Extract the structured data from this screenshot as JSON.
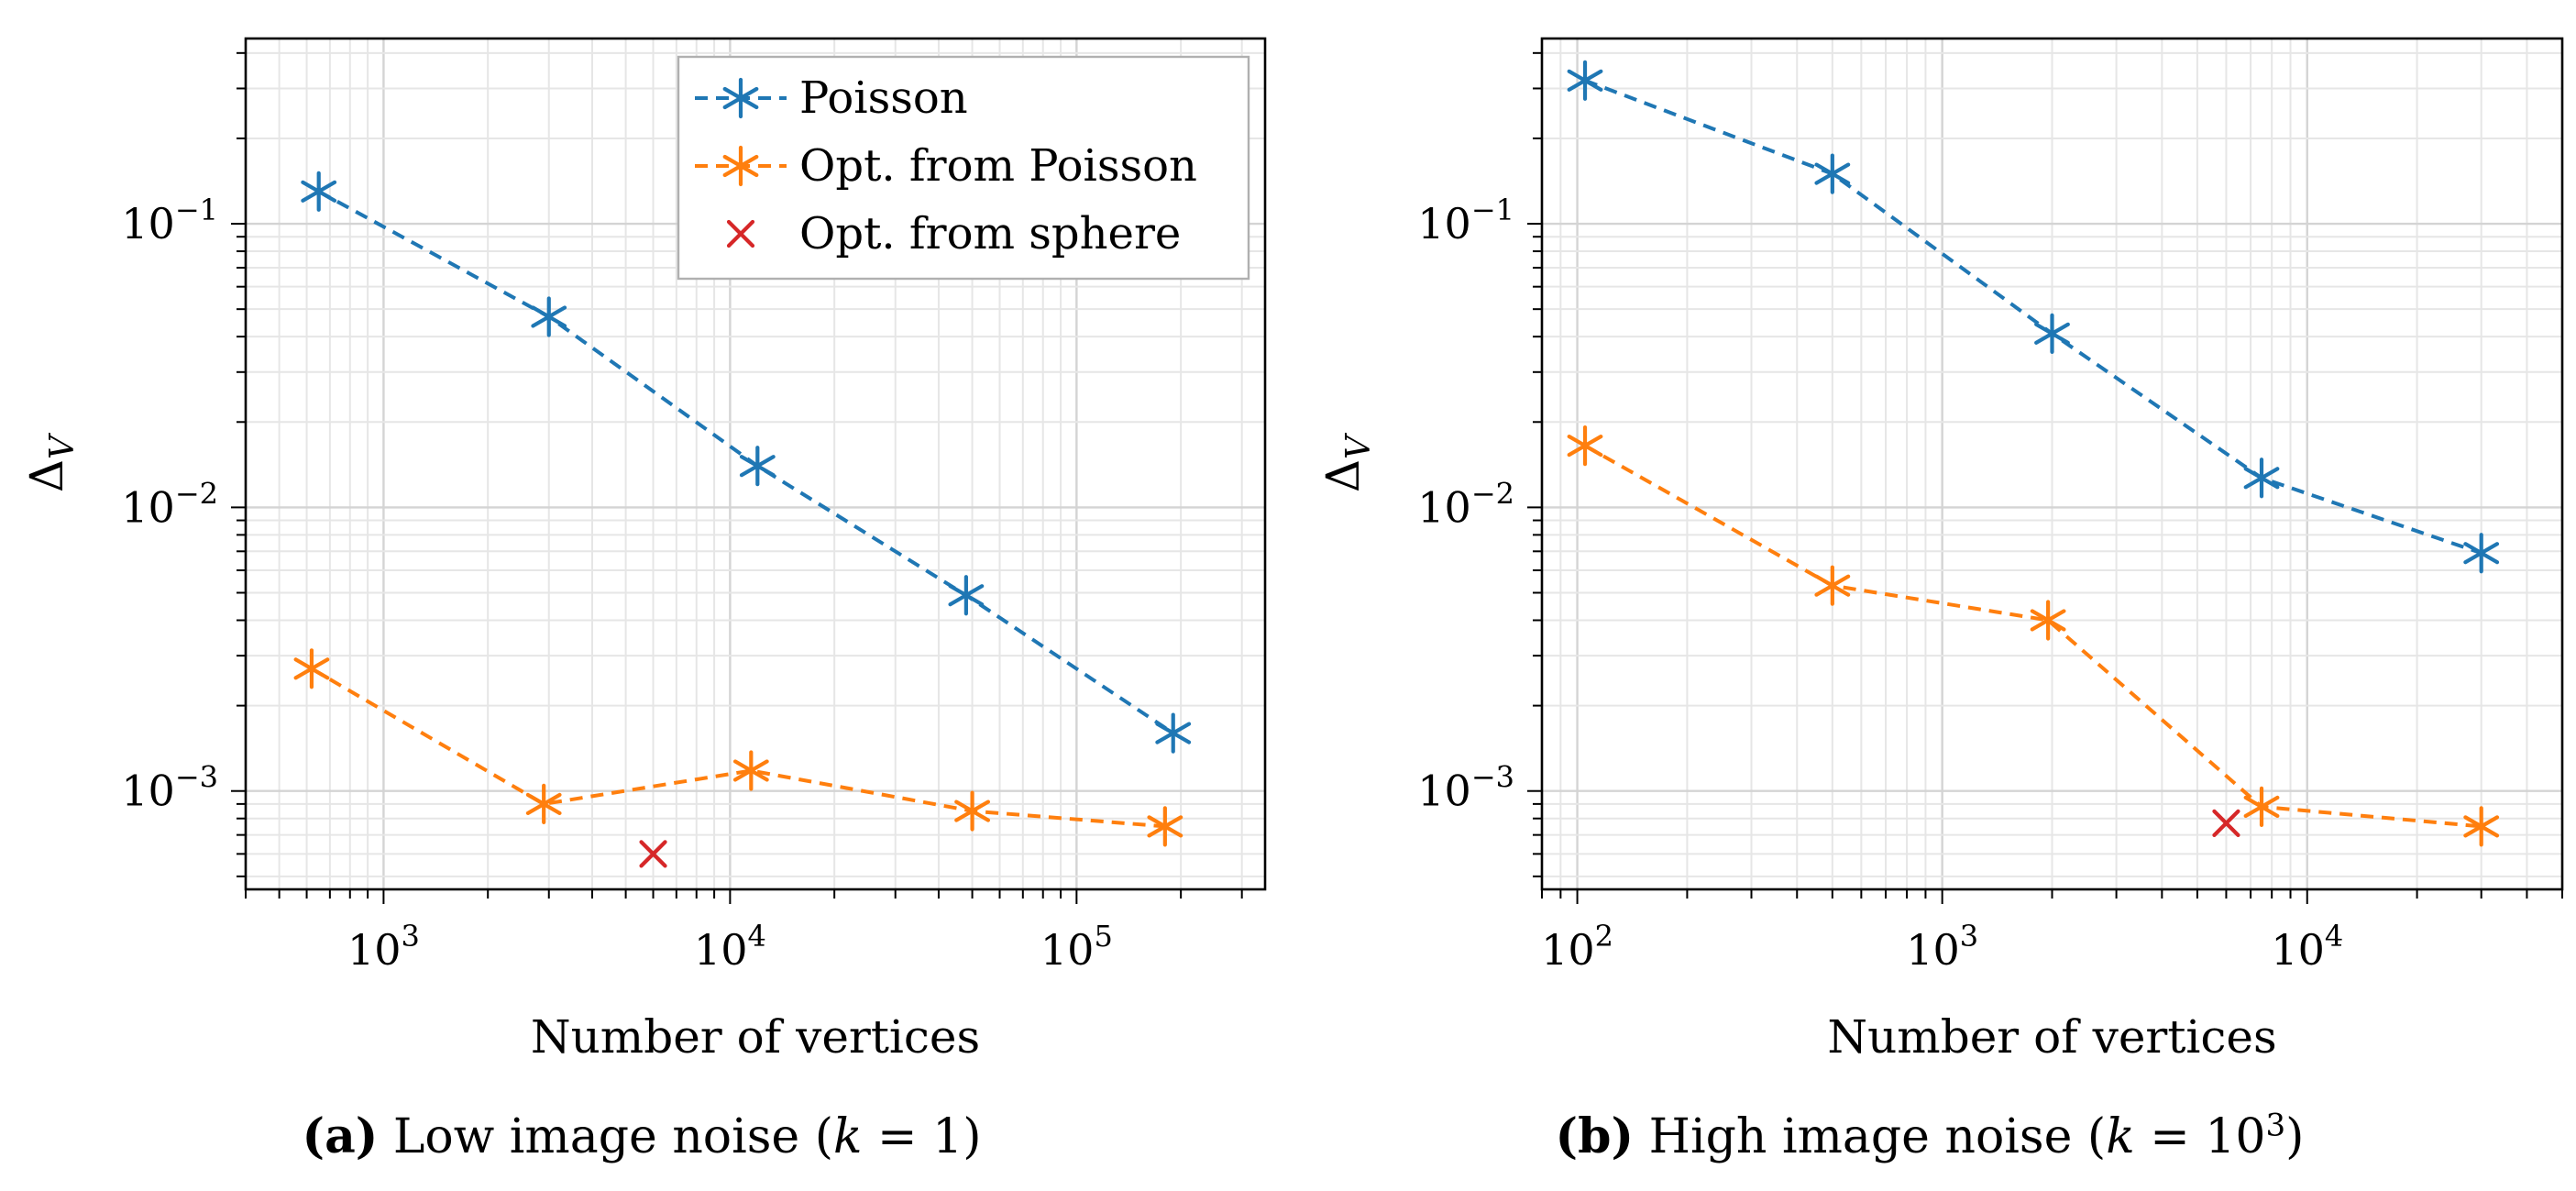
{
  "chart_data": [
    {
      "type": "line",
      "panel": "a",
      "xscale": "log",
      "yscale": "log",
      "xlim": [
        400,
        350000
      ],
      "ylim": [
        0.00045,
        0.45
      ],
      "xlabel": "Number of vertices",
      "ylabel": "Δ",
      "ylabel_sub": "V",
      "x_ticks": [
        {
          "base": "10",
          "exp": "3",
          "value": 1000
        },
        {
          "base": "10",
          "exp": "4",
          "value": 10000
        },
        {
          "base": "10",
          "exp": "5",
          "value": 100000
        }
      ],
      "y_ticks": [
        {
          "base": "10",
          "exp": "−3",
          "value": 0.001
        },
        {
          "base": "10",
          "exp": "−2",
          "value": 0.01
        },
        {
          "base": "10",
          "exp": "−1",
          "value": 0.1
        }
      ],
      "grid": true,
      "legend": "top-right",
      "series": [
        {
          "name": "Poisson",
          "color": "#1f77b4",
          "marker": "asterisk",
          "linestyle": "dashed",
          "x": [
            650,
            3000,
            12000,
            48000,
            190000
          ],
          "y": [
            0.13,
            0.047,
            0.014,
            0.0049,
            0.0016
          ]
        },
        {
          "name": "Opt. from Poisson",
          "color": "#ff7f0e",
          "marker": "asterisk",
          "linestyle": "dashed",
          "x": [
            620,
            2900,
            11500,
            50000,
            180000
          ],
          "y": [
            0.0027,
            0.0009,
            0.00118,
            0.00085,
            0.00075
          ]
        },
        {
          "name": "Opt. from sphere",
          "color": "#d62728",
          "marker": "x",
          "linestyle": "none",
          "x": [
            6000
          ],
          "y": [
            0.0006
          ]
        }
      ],
      "caption": {
        "letter": "(a)",
        "before": " Low image noise (",
        "math": "k",
        "after_eq": " = 1)"
      }
    },
    {
      "type": "line",
      "panel": "b",
      "xscale": "log",
      "yscale": "log",
      "xlim": [
        80,
        50000
      ],
      "ylim": [
        0.00045,
        0.45
      ],
      "xlabel": "Number of vertices",
      "ylabel": "Δ",
      "ylabel_sub": "V",
      "x_ticks": [
        {
          "base": "10",
          "exp": "2",
          "value": 100
        },
        {
          "base": "10",
          "exp": "3",
          "value": 1000
        },
        {
          "base": "10",
          "exp": "4",
          "value": 10000
        }
      ],
      "y_ticks": [
        {
          "base": "10",
          "exp": "−3",
          "value": 0.001
        },
        {
          "base": "10",
          "exp": "−2",
          "value": 0.01
        },
        {
          "base": "10",
          "exp": "−1",
          "value": 0.1
        }
      ],
      "grid": true,
      "series": [
        {
          "name": "Poisson",
          "color": "#1f77b4",
          "marker": "asterisk",
          "linestyle": "dashed",
          "x": [
            105,
            500,
            2000,
            7500,
            30000
          ],
          "y": [
            0.32,
            0.15,
            0.041,
            0.0127,
            0.0069
          ]
        },
        {
          "name": "Opt. from Poisson",
          "color": "#ff7f0e",
          "marker": "asterisk",
          "linestyle": "dashed",
          "x": [
            105,
            500,
            1950,
            7500,
            30000
          ],
          "y": [
            0.0165,
            0.0053,
            0.004,
            0.00088,
            0.00075
          ]
        },
        {
          "name": "Opt. from sphere",
          "color": "#d62728",
          "marker": "x",
          "linestyle": "none",
          "x": [
            6000
          ],
          "y": [
            0.00077
          ]
        }
      ],
      "caption": {
        "letter": "(b)",
        "before": " High image noise (",
        "math": "k",
        "after_eq": " = 10",
        "sup": "3",
        "close": ")"
      }
    }
  ]
}
